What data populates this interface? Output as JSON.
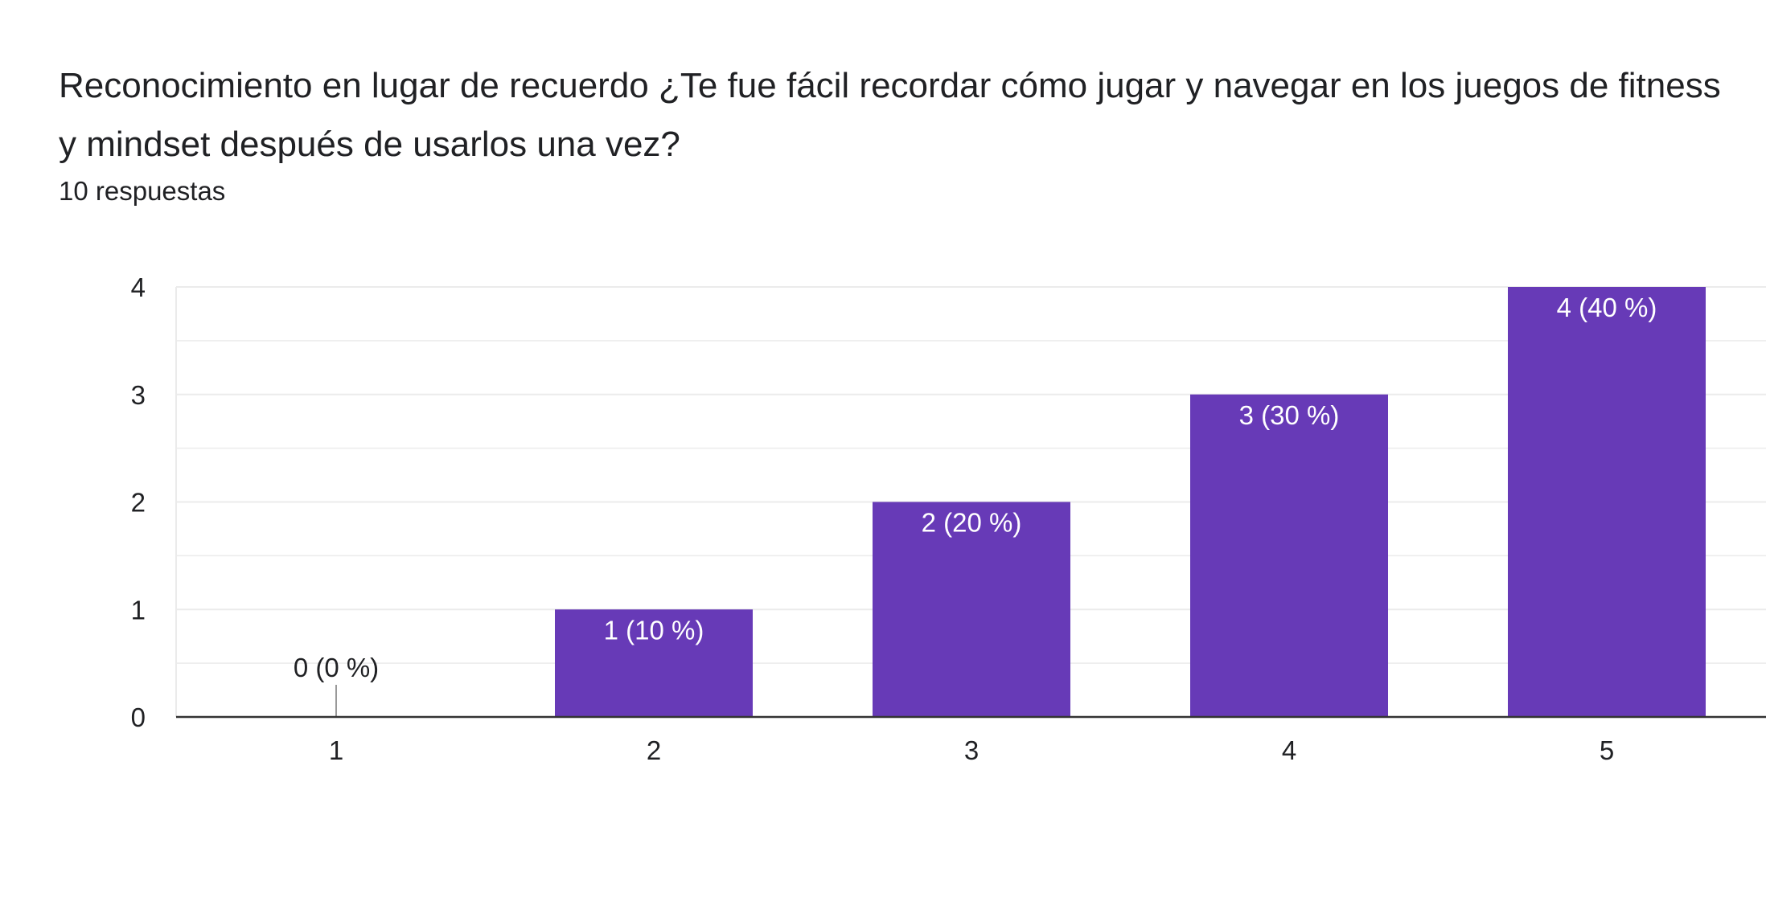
{
  "header": {
    "title": "Reconocimiento en lugar de recuerdo ¿Te fue fácil recordar cómo jugar y navegar en los juegos de fitness y mindset después de usarlos una vez?",
    "responses": "10 respuestas"
  },
  "colors": {
    "bar": "#673ab7",
    "gridline": "#ebebeb",
    "axis": "#333333",
    "zero_marker": "#999999",
    "label_inside": "#ffffff",
    "label_outside": "#202124"
  },
  "chart_data": {
    "type": "bar",
    "categories": [
      "1",
      "2",
      "3",
      "4",
      "5"
    ],
    "values": [
      0,
      1,
      2,
      3,
      4
    ],
    "data_labels": [
      "0 (0 %)",
      "1 (10 %)",
      "2 (20 %)",
      "3 (30 %)",
      "4 (40 %)"
    ],
    "y_ticks": [
      "0",
      "1",
      "2",
      "3",
      "4"
    ],
    "ylim": [
      0,
      4
    ],
    "grid": true,
    "legend": "none"
  }
}
